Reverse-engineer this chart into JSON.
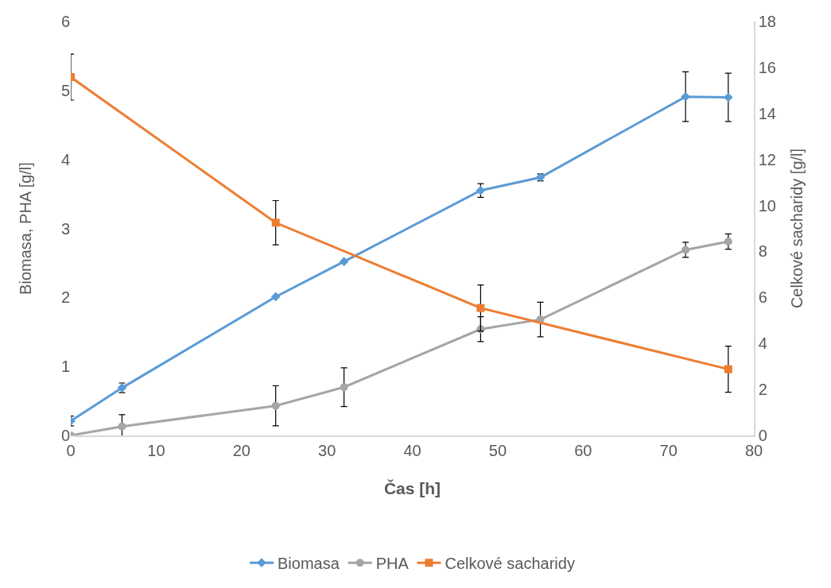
{
  "chart_data": {
    "type": "line",
    "xlabel": "Čas [h]",
    "ylabel": "Biomasa, PHA [g/l]",
    "y2label": "Celkové sacharidy [g/l]",
    "xlim": [
      0,
      80
    ],
    "xticks": [
      0,
      10,
      20,
      30,
      40,
      50,
      60,
      70,
      80
    ],
    "ylim": [
      0,
      6
    ],
    "yticks": [
      0,
      1,
      2,
      3,
      4,
      5,
      6
    ],
    "y2lim": [
      0,
      18
    ],
    "y2ticks": [
      0,
      2,
      4,
      6,
      8,
      10,
      12,
      14,
      16,
      18
    ],
    "grid": false,
    "legend": "bottom",
    "series": [
      {
        "name": "Biomasa",
        "color": "#5b9bd5",
        "marker": "diamond",
        "x": [
          0,
          6,
          24,
          32,
          48,
          55,
          72,
          77
        ],
        "values": [
          0.21,
          0.69,
          2.01,
          2.52,
          3.55,
          3.74,
          4.91,
          4.9
        ],
        "errors": [
          0.07,
          0.07,
          null,
          null,
          0.1,
          0.05,
          0.36,
          0.35
        ]
      },
      {
        "name": "PHA",
        "color": "#a5a5a5",
        "marker": "circle",
        "x": [
          0,
          6,
          24,
          32,
          48,
          55,
          72,
          77
        ],
        "values": [
          0,
          0.13,
          0.43,
          0.7,
          1.54,
          1.68,
          2.69,
          2.81
        ],
        "errors": [
          null,
          0.17,
          0.29,
          0.28,
          0.18,
          0.25,
          0.11,
          0.11
        ]
      },
      {
        "name": "Celkové sacharidy",
        "color": "#ed7d31",
        "marker": "square",
        "axis": "y2",
        "x": [
          0,
          24,
          48,
          77
        ],
        "values": [
          15.58,
          9.25,
          5.54,
          2.88
        ],
        "errors": [
          1.0,
          0.96,
          1.0,
          1.0
        ]
      }
    ]
  }
}
